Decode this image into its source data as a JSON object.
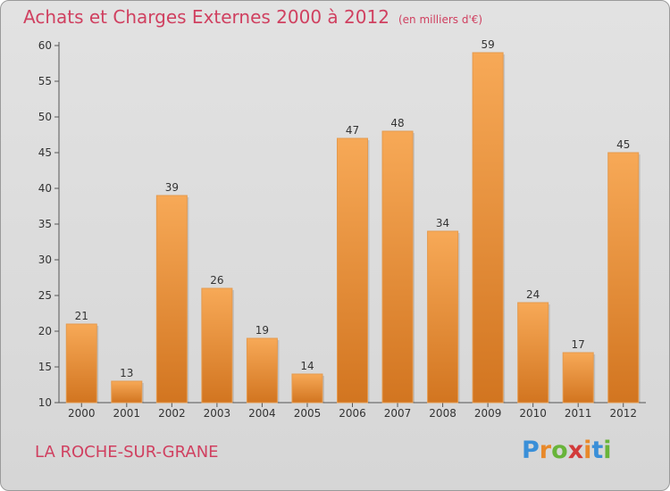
{
  "title": "Achats et Charges Externes 2000 à 2012",
  "unit_note": "(en milliers d'€)",
  "location": "LA ROCHE-SUR-GRANE",
  "brand": {
    "text": "Proxiti",
    "letter_colors": [
      "#3a8fd8",
      "#e8892a",
      "#68b43a",
      "#d23a3a",
      "#e8892a",
      "#3a8fd8",
      "#68b43a"
    ]
  },
  "colors": {
    "title": "#d04060",
    "bar_light": "#f7a957",
    "bar_dark": "#d27520",
    "axis": "#555555"
  },
  "chart_data": {
    "type": "bar",
    "categories": [
      "2000",
      "2001",
      "2002",
      "2003",
      "2004",
      "2005",
      "2006",
      "2007",
      "2008",
      "2009",
      "2010",
      "2011",
      "2012"
    ],
    "values": [
      21,
      13,
      39,
      26,
      19,
      14,
      47,
      48,
      34,
      59,
      24,
      17,
      45
    ],
    "ylim": [
      10,
      60
    ],
    "yticks": [
      10,
      15,
      20,
      25,
      30,
      35,
      40,
      45,
      50,
      55,
      60
    ],
    "grid": false,
    "xlabel": "",
    "ylabel": ""
  }
}
